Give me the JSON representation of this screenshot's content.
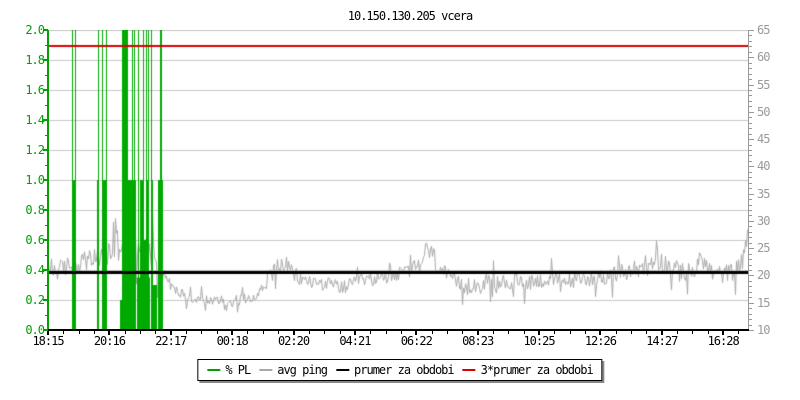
{
  "title": "10.150.130.205 vcera",
  "chart_data": {
    "type": "line",
    "title": "10.150.130.205 vcera",
    "grid": true,
    "grid_color": "#C8C8C8",
    "x_axis": {
      "tick_labels": [
        "18:15",
        "20:16",
        "22:17",
        "00:18",
        "02:20",
        "04:21",
        "06:22",
        "08:23",
        "10:25",
        "12:26",
        "14:27",
        "16:28"
      ],
      "minutes_per_tick": 121,
      "total_minutes": 1380,
      "minor_ticks_per_major": 4
    },
    "y_left": {
      "min": 0.0,
      "max": 2.0,
      "step": 0.2,
      "minor_step": 0.1,
      "tick_labels": [
        "2.0",
        "1.8",
        "1.6",
        "1.4",
        "1.2",
        "1.0",
        "0.8",
        "0.6",
        "0.4",
        "0.2",
        "0.0"
      ],
      "color": "#00A000"
    },
    "y_right": {
      "min": 10,
      "max": 65,
      "step": 5,
      "minor_step": 1,
      "tick_labels": [
        "65",
        "60",
        "55",
        "50",
        "45",
        "40",
        "35",
        "30",
        "25",
        "20",
        "15",
        "10"
      ],
      "color": "#999999"
    },
    "series": [
      {
        "name": "% PL",
        "type": "bars",
        "color": "#00AA00",
        "bars": [
          [
            47,
            2,
            2
          ],
          [
            53,
            2,
            2
          ],
          [
            47,
            8,
            1
          ],
          [
            97,
            4,
            1
          ],
          [
            99,
            2,
            2
          ],
          [
            107,
            2,
            2
          ],
          [
            108,
            6,
            1
          ],
          [
            114,
            2,
            2
          ],
          [
            142,
            4,
            0.2
          ],
          [
            146,
            20,
            1
          ],
          [
            146,
            12,
            2
          ],
          [
            164,
            6,
            0.3
          ],
          [
            166,
            2,
            2
          ],
          [
            168,
            6,
            1
          ],
          [
            170,
            2,
            2
          ],
          [
            176,
            26,
            0.35
          ],
          [
            178,
            2,
            2
          ],
          [
            181,
            6,
            1
          ],
          [
            187,
            2,
            2
          ],
          [
            189,
            4,
            0.6
          ],
          [
            193,
            6,
            1
          ],
          [
            193,
            2,
            2
          ],
          [
            197,
            2,
            2
          ],
          [
            203,
            4,
            1
          ],
          [
            203,
            2,
            2
          ],
          [
            207,
            8,
            0.3
          ],
          [
            217,
            10,
            1
          ],
          [
            221,
            4,
            2
          ]
        ]
      },
      {
        "name": "avg ping",
        "type": "noisy_line",
        "color": "#A8A8A8",
        "seed": 1234567,
        "points": [
          [
            0,
            20.5
          ],
          [
            20,
            21
          ],
          [
            40,
            21.8
          ],
          [
            60,
            22.3
          ],
          [
            80,
            22.8
          ],
          [
            100,
            23.2
          ],
          [
            120,
            24
          ],
          [
            140,
            26
          ],
          [
            150,
            27.5
          ],
          [
            160,
            28.5
          ],
          [
            170,
            27
          ],
          [
            185,
            25.5
          ],
          [
            200,
            24.5
          ],
          [
            215,
            23.5
          ],
          [
            225,
            21.5
          ],
          [
            235,
            19
          ],
          [
            250,
            17.2
          ],
          [
            270,
            16.2
          ],
          [
            300,
            15.6
          ],
          [
            330,
            15.3
          ],
          [
            360,
            15.2
          ],
          [
            390,
            15.8
          ],
          [
            410,
            16.5
          ],
          [
            425,
            18
          ],
          [
            440,
            20.8
          ],
          [
            455,
            22
          ],
          [
            470,
            21.8
          ],
          [
            480,
            20.5
          ],
          [
            495,
            19.3
          ],
          [
            520,
            18.8
          ],
          [
            545,
            18.5
          ],
          [
            570,
            18
          ],
          [
            585,
            17.8
          ],
          [
            600,
            18.4
          ],
          [
            630,
            19.2
          ],
          [
            660,
            19.8
          ],
          [
            690,
            20.2
          ],
          [
            715,
            21
          ],
          [
            735,
            22.5
          ],
          [
            748,
            25
          ],
          [
            755,
            24
          ],
          [
            770,
            21.5
          ],
          [
            790,
            19.5
          ],
          [
            810,
            18.3
          ],
          [
            825,
            17.8
          ],
          [
            840,
            18.4
          ],
          [
            870,
            18.8
          ],
          [
            900,
            18.6
          ],
          [
            930,
            18.7
          ],
          [
            960,
            19
          ],
          [
            990,
            19.2
          ],
          [
            1020,
            19
          ],
          [
            1050,
            19.3
          ],
          [
            1080,
            19.6
          ],
          [
            1110,
            20
          ],
          [
            1140,
            20.5
          ],
          [
            1160,
            21.2
          ],
          [
            1180,
            22.3
          ],
          [
            1200,
            22.8
          ],
          [
            1215,
            22.3
          ],
          [
            1235,
            21
          ],
          [
            1255,
            20.2
          ],
          [
            1275,
            20.8
          ],
          [
            1288,
            23.5
          ],
          [
            1295,
            22
          ],
          [
            1310,
            20.3
          ],
          [
            1330,
            20.2
          ],
          [
            1350,
            20.8
          ],
          [
            1362,
            21.5
          ],
          [
            1372,
            23.5
          ],
          [
            1380,
            30
          ]
        ],
        "noise_bands": [
          [
            0,
            110,
            1.8
          ],
          [
            110,
            225,
            3.2
          ],
          [
            225,
            420,
            1.0
          ],
          [
            420,
            490,
            1.6
          ],
          [
            490,
            740,
            1.3
          ],
          [
            740,
            775,
            2.0
          ],
          [
            775,
            1140,
            1.5
          ],
          [
            1140,
            1270,
            1.9
          ],
          [
            1270,
            1380,
            1.7
          ]
        ]
      },
      {
        "name": "prumer za obdobi",
        "type": "hline",
        "color": "#000000",
        "value_ms": 20.7,
        "thickness": 3
      },
      {
        "name": "3*prumer za obdobi",
        "type": "hline",
        "color": "#D80000",
        "value_ms": 62.1,
        "thickness": 2
      }
    ]
  },
  "legend": {
    "items": [
      {
        "label": "% PL",
        "color": "#00A000"
      },
      {
        "label": "avg ping",
        "color": "#A8A8A8"
      },
      {
        "label": "prumer za obdobi",
        "color": "#000000"
      },
      {
        "label": "3*prumer za obdobi",
        "color": "#D80000"
      }
    ]
  }
}
